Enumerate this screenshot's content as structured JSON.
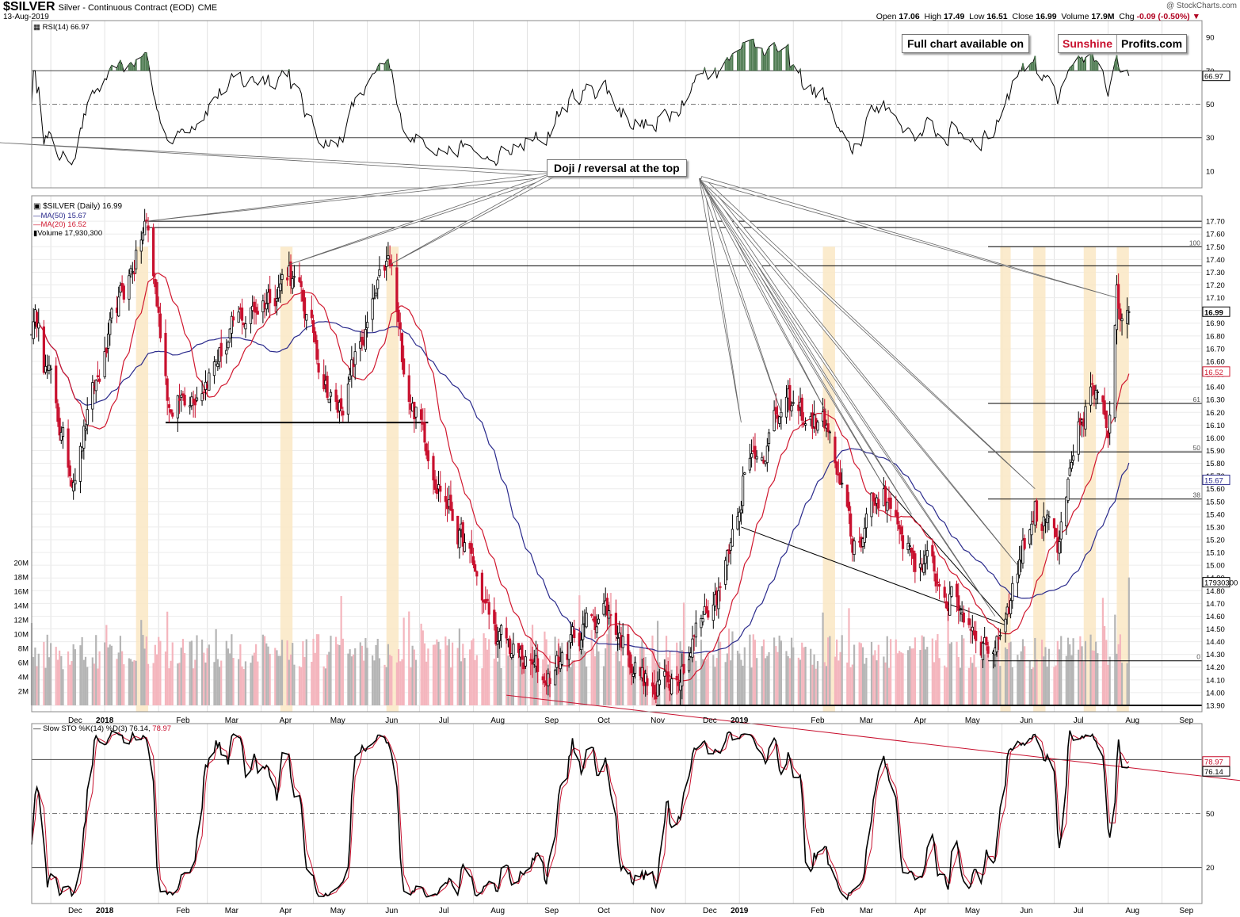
{
  "header": {
    "symbol": "$SILVER",
    "name": "Silver - Continuous Contract (EOD)",
    "exchange": "CME",
    "date": "13-Aug-2019",
    "credit": "@ StockCharts.com",
    "ohlc": {
      "open_label": "Open",
      "open": "17.06",
      "high_label": "High",
      "high": "17.49",
      "low_label": "Low",
      "low": "16.51",
      "close_label": "Close",
      "close": "16.99",
      "volume_label": "Volume",
      "volume": "17.9M",
      "chg_label": "Chg",
      "chg": "-0.09 (-0.50%)"
    }
  },
  "watermark": {
    "full_chart": "Full chart available on",
    "brand_a": "Sunshine",
    "brand_b": "Profits.com"
  },
  "annotation": {
    "doji": "Doji / reversal at the top"
  },
  "legends": {
    "rsi": "RSI(14) 66.97",
    "price": "$SILVER (Daily) 16.99",
    "ma50": "MA(50) 15.67",
    "ma20": "MA(20) 16.52",
    "volume": "Volume 17,930,300",
    "sto_a": "Slow STO %K(14) %D(3) 76.14, ",
    "sto_b": "78.97"
  },
  "colors": {
    "up": "#000000",
    "down": "#c8102e",
    "ma20": "#d0182f",
    "ma50": "#2a2a8c",
    "vol_up": "#b5b5b5",
    "vol_down": "#f4b5bd",
    "highlight": "#fae7c4",
    "rsi_fill": "#4d7a50"
  },
  "chart_data": [
    {
      "type": "line",
      "panel": "RSI(14)",
      "last": 66.97,
      "ylim": [
        0,
        100
      ],
      "ticks": [
        90,
        70,
        50,
        30,
        10
      ],
      "reference_lines": [
        70,
        50,
        30
      ],
      "last_label": "66.97"
    },
    {
      "type": "candlestick",
      "panel": "$SILVER (Daily)",
      "ylim": [
        13.85,
        17.9
      ],
      "ticks": [
        17.7,
        17.6,
        17.5,
        17.4,
        17.3,
        17.2,
        17.1,
        17.0,
        16.9,
        16.8,
        16.7,
        16.6,
        16.5,
        16.4,
        16.3,
        16.2,
        16.1,
        16.0,
        15.9,
        15.8,
        15.7,
        15.6,
        15.5,
        15.4,
        15.3,
        15.2,
        15.1,
        15.0,
        14.9,
        14.8,
        14.7,
        14.6,
        14.5,
        14.4,
        14.3,
        14.2,
        14.1,
        14.0,
        13.9
      ],
      "tick_labels": [
        "17.70",
        "17.60",
        "17.50",
        "17.40",
        "17.30",
        "17.20",
        "17.10",
        "17.00",
        "16.90",
        "16.80",
        "16.70",
        "16.60",
        "16.50",
        "16.40",
        "16.30",
        "16.20",
        "16.10",
        "16.00",
        "15.90",
        "15.80",
        "15.70",
        "15.60",
        "15.50",
        "15.40",
        "15.30",
        "15.20",
        "15.10",
        "15.00",
        "14.90",
        "14.80",
        "14.70",
        "14.60",
        "14.50",
        "14.40",
        "14.30",
        "14.20",
        "14.10",
        "14.00",
        "13.90"
      ],
      "x_labels": [
        "Dec",
        "2018",
        "Feb",
        "Mar",
        "Apr",
        "May",
        "Jun",
        "Jul",
        "Aug",
        "Sep",
        "Oct",
        "Nov",
        "Dec",
        "2019",
        "Feb",
        "Mar",
        "Apr",
        "May",
        "Jun",
        "Jul",
        "Aug",
        "Sep"
      ],
      "key_points": [
        {
          "date": "2017-11-24",
          "close": 16.9
        },
        {
          "date": "2017-12-12",
          "close": 15.7
        },
        {
          "date": "2018-01-25",
          "close": 17.7
        },
        {
          "date": "2018-02-08",
          "close": 16.2
        },
        {
          "date": "2018-04-17",
          "close": 17.35
        },
        {
          "date": "2018-05-15",
          "close": 16.2
        },
        {
          "date": "2018-06-14",
          "close": 17.35
        },
        {
          "date": "2018-06-22",
          "close": 16.5
        },
        {
          "date": "2018-08-15",
          "close": 14.4
        },
        {
          "date": "2018-09-10",
          "close": 14.1
        },
        {
          "date": "2018-10-15",
          "close": 14.7
        },
        {
          "date": "2018-11-14",
          "close": 13.95
        },
        {
          "date": "2018-12-20",
          "close": 14.8
        },
        {
          "date": "2019-01-03",
          "close": 15.7
        },
        {
          "date": "2019-01-25",
          "close": 16.2
        },
        {
          "date": "2019-02-20",
          "close": 16.1
        },
        {
          "date": "2019-03-07",
          "close": 15.1
        },
        {
          "date": "2019-03-25",
          "close": 15.6
        },
        {
          "date": "2019-04-10",
          "close": 15.1
        },
        {
          "date": "2019-05-28",
          "close": 14.35
        },
        {
          "date": "2019-06-20",
          "close": 15.5
        },
        {
          "date": "2019-07-03",
          "close": 15.1
        },
        {
          "date": "2019-07-22",
          "close": 16.4
        },
        {
          "date": "2019-08-01",
          "close": 16.0
        },
        {
          "date": "2019-08-06",
          "close": 17.2
        },
        {
          "date": "2019-08-13",
          "close": 16.99
        }
      ],
      "last_close_label": "16.99",
      "ma50_last": 15.67,
      "ma20_last": 16.52,
      "ma50_label": "15.67",
      "ma20_label": "16.52",
      "horizontal_levels": [
        17.7,
        17.65,
        17.35,
        13.9,
        16.12
      ],
      "fib_levels": [
        {
          "price": 17.5,
          "label": "100"
        },
        {
          "price": 16.27,
          "label": "61"
        },
        {
          "price": 15.89,
          "label": "50"
        },
        {
          "price": 15.52,
          "label": "38"
        },
        {
          "price": 14.25,
          "label": "0"
        }
      ]
    },
    {
      "type": "bar",
      "panel": "Volume",
      "last": 17930300,
      "last_label": "17930300",
      "ticks": [
        "20M",
        "18M",
        "16M",
        "14M",
        "12M",
        "10M",
        "8M",
        "6M",
        "4M",
        "2M"
      ]
    },
    {
      "type": "line",
      "panel": "Slow STO %K(14) %D(3)",
      "k_last": 76.14,
      "d_last": 78.97,
      "ylim": [
        0,
        100
      ],
      "ticks": [
        80,
        50,
        20
      ],
      "reference_lines": [
        80,
        50,
        20
      ],
      "k_label": "76.14",
      "d_label": "78.97"
    }
  ]
}
